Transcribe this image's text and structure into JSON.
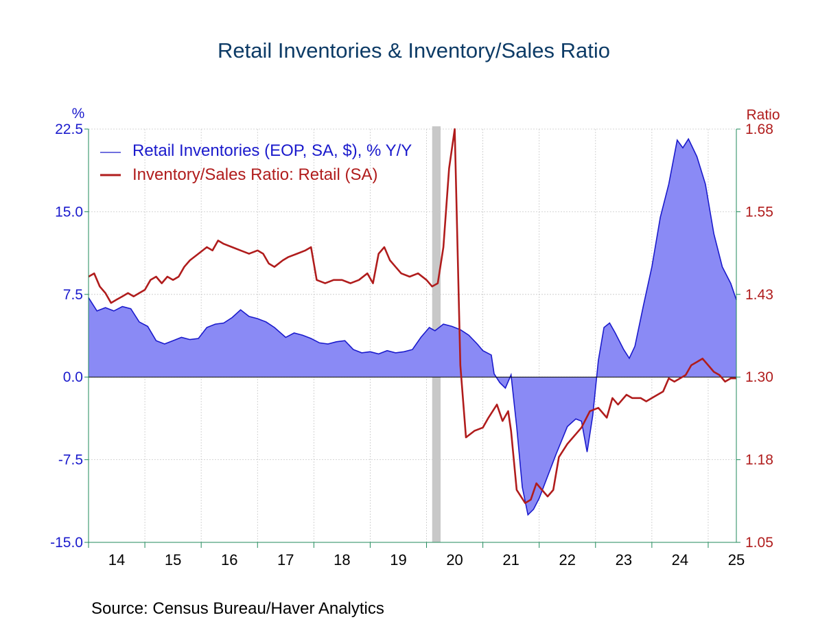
{
  "chart_data": {
    "type": "area",
    "title": "Retail Inventories & Inventory/Sales Ratio",
    "source": "Source:  Census Bureau/Haver Analytics",
    "x_labels": [
      "14",
      "15",
      "16",
      "17",
      "18",
      "19",
      "20",
      "21",
      "22",
      "23",
      "24",
      "25"
    ],
    "x_range": [
      2014.0,
      2025.5
    ],
    "grid": true,
    "legend_position": "top-left",
    "recession_shading": [
      2020.1,
      2020.25
    ],
    "left_axis": {
      "unit": "%",
      "range": [
        -15.0,
        22.5
      ],
      "ticks": [
        "22.5",
        "15.0",
        "7.5",
        "0.0",
        "-7.5",
        "-15.0"
      ],
      "color": "#1a1acc"
    },
    "right_axis": {
      "unit": "Ratio",
      "range": [
        1.05,
        1.68
      ],
      "ticks": [
        "1.68",
        "1.55",
        "1.43",
        "1.30",
        "1.18",
        "1.05"
      ],
      "color": "#b01c1c"
    },
    "series": [
      {
        "name": "Retail Inventories (EOP, SA, $), % Y/Y",
        "axis": "left",
        "type": "area",
        "color": "#1a1acc",
        "fill": "#8a8af5",
        "points": [
          [
            2014.0,
            7.2
          ],
          [
            2014.15,
            6.0
          ],
          [
            2014.3,
            6.3
          ],
          [
            2014.45,
            6.0
          ],
          [
            2014.6,
            6.4
          ],
          [
            2014.75,
            6.2
          ],
          [
            2014.9,
            5.0
          ],
          [
            2015.05,
            4.6
          ],
          [
            2015.2,
            3.3
          ],
          [
            2015.35,
            3.0
          ],
          [
            2015.5,
            3.3
          ],
          [
            2015.65,
            3.6
          ],
          [
            2015.8,
            3.4
          ],
          [
            2015.95,
            3.5
          ],
          [
            2016.1,
            4.5
          ],
          [
            2016.25,
            4.8
          ],
          [
            2016.4,
            4.9
          ],
          [
            2016.55,
            5.4
          ],
          [
            2016.7,
            6.1
          ],
          [
            2016.85,
            5.5
          ],
          [
            2017.0,
            5.3
          ],
          [
            2017.15,
            5.0
          ],
          [
            2017.3,
            4.5
          ],
          [
            2017.5,
            3.6
          ],
          [
            2017.65,
            4.0
          ],
          [
            2017.8,
            3.8
          ],
          [
            2017.95,
            3.5
          ],
          [
            2018.1,
            3.1
          ],
          [
            2018.25,
            3.0
          ],
          [
            2018.4,
            3.2
          ],
          [
            2018.55,
            3.3
          ],
          [
            2018.7,
            2.5
          ],
          [
            2018.85,
            2.2
          ],
          [
            2019.0,
            2.3
          ],
          [
            2019.15,
            2.1
          ],
          [
            2019.3,
            2.4
          ],
          [
            2019.45,
            2.2
          ],
          [
            2019.6,
            2.3
          ],
          [
            2019.75,
            2.5
          ],
          [
            2019.9,
            3.6
          ],
          [
            2020.05,
            4.5
          ],
          [
            2020.15,
            4.2
          ],
          [
            2020.3,
            4.8
          ],
          [
            2020.45,
            4.6
          ],
          [
            2020.6,
            4.3
          ],
          [
            2020.75,
            3.8
          ],
          [
            2020.9,
            3.0
          ],
          [
            2021.0,
            2.4
          ],
          [
            2021.15,
            2.0
          ],
          [
            2021.2,
            0.3
          ],
          [
            2021.3,
            -0.5
          ],
          [
            2021.4,
            -1.0
          ],
          [
            2021.5,
            0.2
          ],
          [
            2021.6,
            -4.5
          ],
          [
            2021.7,
            -10.0
          ],
          [
            2021.8,
            -12.5
          ],
          [
            2021.9,
            -12.0
          ],
          [
            2022.0,
            -11.0
          ],
          [
            2022.15,
            -9.0
          ],
          [
            2022.3,
            -7.0
          ],
          [
            2022.5,
            -4.5
          ],
          [
            2022.65,
            -3.8
          ],
          [
            2022.75,
            -4.0
          ],
          [
            2022.85,
            -6.8
          ],
          [
            2022.95,
            -3.5
          ],
          [
            2023.05,
            1.5
          ],
          [
            2023.15,
            4.5
          ],
          [
            2023.25,
            4.9
          ],
          [
            2023.35,
            4.0
          ],
          [
            2023.5,
            2.5
          ],
          [
            2023.6,
            1.7
          ],
          [
            2023.7,
            2.8
          ],
          [
            2023.85,
            6.5
          ],
          [
            2024.0,
            10.0
          ],
          [
            2024.15,
            14.5
          ],
          [
            2024.3,
            17.5
          ],
          [
            2024.45,
            21.5
          ],
          [
            2024.55,
            20.8
          ],
          [
            2024.65,
            21.6
          ],
          [
            2024.8,
            20.0
          ],
          [
            2024.95,
            17.5
          ],
          [
            2025.1,
            13.0
          ],
          [
            2025.25,
            10.0
          ],
          [
            2025.4,
            8.5
          ],
          [
            2025.5,
            7.0
          ]
        ]
      },
      {
        "name": "Inventory/Sales Ratio: Retail (SA)",
        "axis": "right",
        "type": "line",
        "color": "#b01c1c",
        "points": [
          [
            2014.0,
            1.455
          ],
          [
            2014.1,
            1.46
          ],
          [
            2014.2,
            1.44
          ],
          [
            2014.3,
            1.43
          ],
          [
            2014.4,
            1.415
          ],
          [
            2014.5,
            1.42
          ],
          [
            2014.6,
            1.425
          ],
          [
            2014.7,
            1.43
          ],
          [
            2014.8,
            1.425
          ],
          [
            2014.9,
            1.43
          ],
          [
            2015.0,
            1.435
          ],
          [
            2015.1,
            1.45
          ],
          [
            2015.2,
            1.455
          ],
          [
            2015.3,
            1.445
          ],
          [
            2015.4,
            1.455
          ],
          [
            2015.5,
            1.45
          ],
          [
            2015.6,
            1.455
          ],
          [
            2015.7,
            1.47
          ],
          [
            2015.8,
            1.48
          ],
          [
            2015.95,
            1.49
          ],
          [
            2016.1,
            1.5
          ],
          [
            2016.2,
            1.495
          ],
          [
            2016.3,
            1.51
          ],
          [
            2016.4,
            1.505
          ],
          [
            2016.55,
            1.5
          ],
          [
            2016.7,
            1.495
          ],
          [
            2016.85,
            1.49
          ],
          [
            2017.0,
            1.495
          ],
          [
            2017.1,
            1.49
          ],
          [
            2017.2,
            1.475
          ],
          [
            2017.3,
            1.47
          ],
          [
            2017.45,
            1.48
          ],
          [
            2017.55,
            1.485
          ],
          [
            2017.7,
            1.49
          ],
          [
            2017.85,
            1.495
          ],
          [
            2017.95,
            1.5
          ],
          [
            2018.05,
            1.45
          ],
          [
            2018.2,
            1.445
          ],
          [
            2018.35,
            1.45
          ],
          [
            2018.5,
            1.45
          ],
          [
            2018.65,
            1.445
          ],
          [
            2018.8,
            1.45
          ],
          [
            2018.95,
            1.46
          ],
          [
            2019.05,
            1.445
          ],
          [
            2019.15,
            1.49
          ],
          [
            2019.25,
            1.5
          ],
          [
            2019.35,
            1.48
          ],
          [
            2019.45,
            1.47
          ],
          [
            2019.55,
            1.46
          ],
          [
            2019.7,
            1.455
          ],
          [
            2019.85,
            1.46
          ],
          [
            2020.0,
            1.45
          ],
          [
            2020.1,
            1.44
          ],
          [
            2020.2,
            1.445
          ],
          [
            2020.3,
            1.5
          ],
          [
            2020.4,
            1.62
          ],
          [
            2020.5,
            1.68
          ],
          [
            2020.55,
            1.5
          ],
          [
            2020.6,
            1.32
          ],
          [
            2020.7,
            1.21
          ],
          [
            2020.85,
            1.22
          ],
          [
            2021.0,
            1.225
          ],
          [
            2021.1,
            1.24
          ],
          [
            2021.25,
            1.26
          ],
          [
            2021.35,
            1.235
          ],
          [
            2021.45,
            1.25
          ],
          [
            2021.5,
            1.22
          ],
          [
            2021.6,
            1.13
          ],
          [
            2021.75,
            1.11
          ],
          [
            2021.85,
            1.115
          ],
          [
            2021.95,
            1.14
          ],
          [
            2022.05,
            1.13
          ],
          [
            2022.15,
            1.12
          ],
          [
            2022.25,
            1.13
          ],
          [
            2022.35,
            1.18
          ],
          [
            2022.5,
            1.2
          ],
          [
            2022.65,
            1.215
          ],
          [
            2022.75,
            1.225
          ],
          [
            2022.9,
            1.25
          ],
          [
            2023.05,
            1.255
          ],
          [
            2023.2,
            1.24
          ],
          [
            2023.3,
            1.27
          ],
          [
            2023.4,
            1.26
          ],
          [
            2023.55,
            1.275
          ],
          [
            2023.65,
            1.27
          ],
          [
            2023.8,
            1.27
          ],
          [
            2023.9,
            1.265
          ],
          [
            2024.0,
            1.27
          ],
          [
            2024.1,
            1.275
          ],
          [
            2024.2,
            1.28
          ],
          [
            2024.3,
            1.3
          ],
          [
            2024.4,
            1.295
          ],
          [
            2024.5,
            1.3
          ],
          [
            2024.6,
            1.305
          ],
          [
            2024.7,
            1.32
          ],
          [
            2024.8,
            1.325
          ],
          [
            2024.9,
            1.33
          ],
          [
            2025.0,
            1.32
          ],
          [
            2025.1,
            1.31
          ],
          [
            2025.2,
            1.305
          ],
          [
            2025.3,
            1.295
          ],
          [
            2025.4,
            1.3
          ],
          [
            2025.5,
            1.3
          ]
        ]
      }
    ]
  }
}
